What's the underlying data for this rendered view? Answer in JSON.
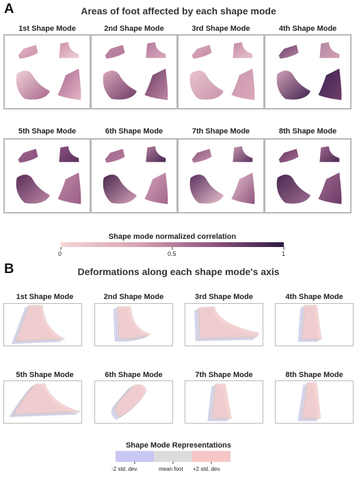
{
  "panel_a": {
    "letter": "A",
    "title": "Areas of foot affected by each shape mode",
    "modes": [
      {
        "label": "1st Shape Mode"
      },
      {
        "label": "2nd Shape Mode"
      },
      {
        "label": "3rd Shape Mode"
      },
      {
        "label": "4th Shape Mode"
      },
      {
        "label": "5th Shape Mode"
      },
      {
        "label": "6th Shape Mode"
      },
      {
        "label": "7th Shape Mode"
      },
      {
        "label": "8th Shape Mode"
      }
    ],
    "colorbar": {
      "title": "Shape mode normalized correlation",
      "ticks": [
        "0",
        "0.5",
        "1"
      ],
      "color_low": "#f3d3d3",
      "color_high": "#2f1a40"
    }
  },
  "panel_b": {
    "letter": "B",
    "title": "Deformations along each shape mode's axis",
    "modes": [
      {
        "label": "1st Shape Mode"
      },
      {
        "label": "2nd Shape Mode"
      },
      {
        "label": "3rd Shape Mode"
      },
      {
        "label": "4th Shape Mode"
      },
      {
        "label": "5th Shape Mode"
      },
      {
        "label": "6th Shape Mode"
      },
      {
        "label": "7th Shape Mode"
      },
      {
        "label": "8th Shape Mode"
      }
    ],
    "legend": {
      "title": "Shape Mode Representations",
      "items": [
        {
          "label": "-2 std. dev.",
          "color": "#c9c7f3"
        },
        {
          "label": "mean foot",
          "color": "#dcdcdc"
        },
        {
          "label": "+2 std. dev.",
          "color": "#f6c6c6"
        }
      ]
    }
  }
}
